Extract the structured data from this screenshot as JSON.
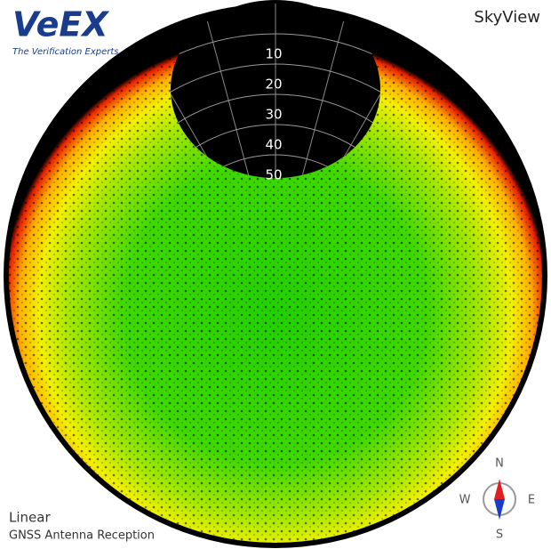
{
  "logo": {
    "name": "VeEX",
    "tagline": "The Verification Experts"
  },
  "title": "SkyView",
  "elevation_rings": [
    10,
    20,
    30,
    40,
    50
  ],
  "rlim": [
    90,
    0
  ],
  "mode": "Linear",
  "caption": "GNSS Antenna Reception",
  "compass": {
    "n": "N",
    "e": "E",
    "s": "S",
    "w": "W"
  }
}
